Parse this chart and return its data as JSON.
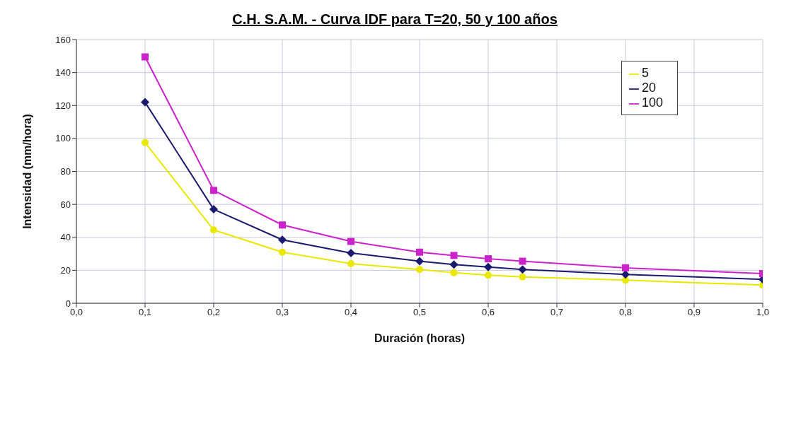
{
  "chart_data": {
    "type": "line",
    "title": "C.H. S.A.M. - Curva IDF para T=20, 50 y 100 años",
    "xlabel": "Duración (horas)",
    "ylabel": "Intensidad (mm/hora)",
    "x": [
      0.1,
      0.2,
      0.3,
      0.4,
      0.5,
      0.55,
      0.6,
      0.65,
      0.8,
      1.0
    ],
    "series": [
      {
        "name": "5",
        "color": "#e8e800",
        "marker": "circle",
        "values": [
          97.5,
          44.5,
          31,
          24,
          20.5,
          18.5,
          17,
          16,
          14,
          11
        ]
      },
      {
        "name": "20",
        "color": "#1a1a6e",
        "marker": "diamond",
        "values": [
          122,
          57,
          38.5,
          30.5,
          25.5,
          23.5,
          22,
          20.5,
          17.5,
          14.5
        ]
      },
      {
        "name": "100",
        "color": "#cc22cc",
        "marker": "square",
        "values": [
          149.5,
          68.5,
          47.5,
          37.5,
          31,
          29,
          27,
          25.5,
          21.5,
          18
        ]
      }
    ],
    "xlim": [
      0,
      1
    ],
    "xticks": [
      {
        "value": 0,
        "label": "0,0"
      },
      {
        "value": 0.1,
        "label": "0,1"
      },
      {
        "value": 0.2,
        "label": "0,2"
      },
      {
        "value": 0.3,
        "label": "0,3"
      },
      {
        "value": 0.4,
        "label": "0,4"
      },
      {
        "value": 0.5,
        "label": "0,5"
      },
      {
        "value": 0.6,
        "label": "0,6"
      },
      {
        "value": 0.7,
        "label": "0,7"
      },
      {
        "value": 0.8,
        "label": "0,8"
      },
      {
        "value": 0.9,
        "label": "0,9"
      },
      {
        "value": 1,
        "label": "1,0"
      }
    ],
    "ylim": [
      0,
      160
    ],
    "yticks": [
      0,
      20,
      40,
      60,
      80,
      100,
      120,
      140,
      160
    ],
    "grid": true,
    "legend": "top right"
  }
}
